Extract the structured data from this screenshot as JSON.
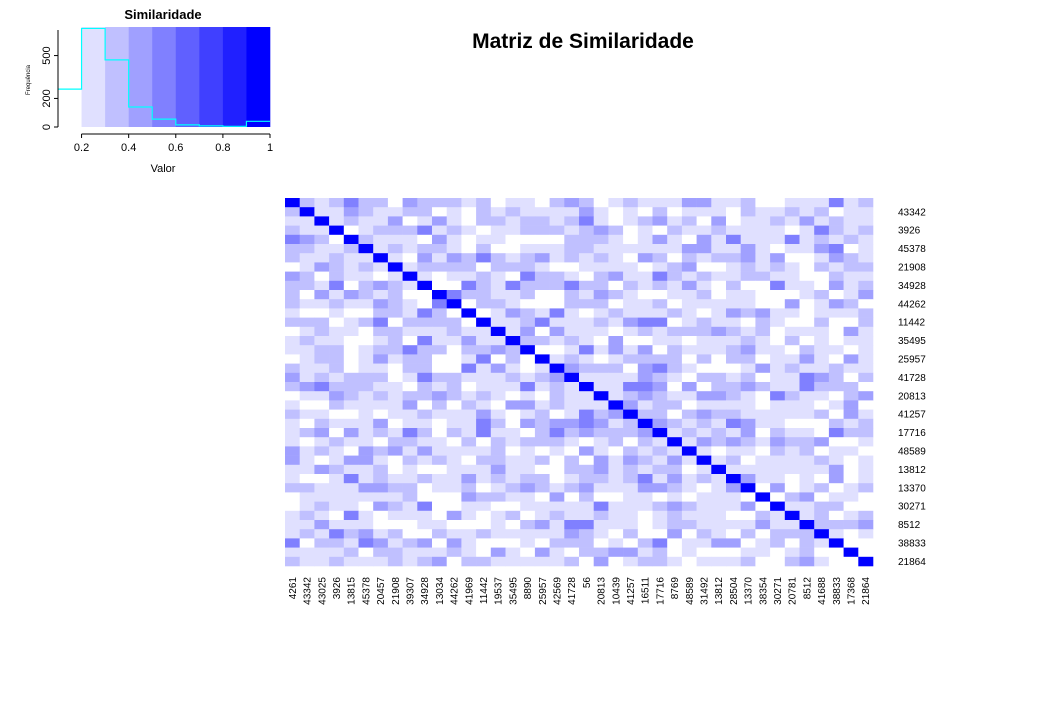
{
  "chart_data": [
    {
      "type": "heatmap",
      "title": "Matriz de Similaridade",
      "columns": [
        "4261",
        "43342",
        "43025",
        "3926",
        "13815",
        "45378",
        "20457",
        "21908",
        "39307",
        "34928",
        "13034",
        "44262",
        "41969",
        "11442",
        "19537",
        "35495",
        "8890",
        "25957",
        "42569",
        "41728",
        "56",
        "20813",
        "10439",
        "41257",
        "16511",
        "17716",
        "8769",
        "48589",
        "31492",
        "13812",
        "28504",
        "13370",
        "38354",
        "30271",
        "20781",
        "8512",
        "41688",
        "38833",
        "17368",
        "21864"
      ],
      "row_labels": [
        "43342",
        "3926",
        "45378",
        "21908",
        "34928",
        "44262",
        "11442",
        "35495",
        "25957",
        "41728",
        "20813",
        "41257",
        "17716",
        "48589",
        "13812",
        "13370",
        "30271",
        "8512",
        "38833",
        "21864"
      ],
      "value_range": [
        0.1,
        1
      ],
      "palette": [
        "#ffffff",
        "#e0e0ff",
        "#c0c0ff",
        "#a0a0ff",
        "#8080ff",
        "#6060ff",
        "#4040ff",
        "#2020ff",
        "#0000ff"
      ],
      "diagonal_value": 1
    },
    {
      "type": "bar",
      "title": "Similaridade",
      "xlabel": "Valor",
      "ylabel": "Frequência",
      "x_ticks": [
        "0.2",
        "0.4",
        "0.6",
        "0.8",
        "1"
      ],
      "y_ticks": [
        "0",
        "200",
        "500"
      ],
      "xlim": [
        0.1,
        1
      ],
      "ylim": [
        0,
        700
      ],
      "bin_edges": [
        0.1,
        0.2,
        0.3,
        0.4,
        0.5,
        0.6,
        0.7,
        0.8,
        0.9,
        1.0
      ],
      "counts": [
        265,
        690,
        470,
        140,
        55,
        15,
        8,
        5,
        40
      ],
      "line_color": "#00ffff"
    }
  ]
}
